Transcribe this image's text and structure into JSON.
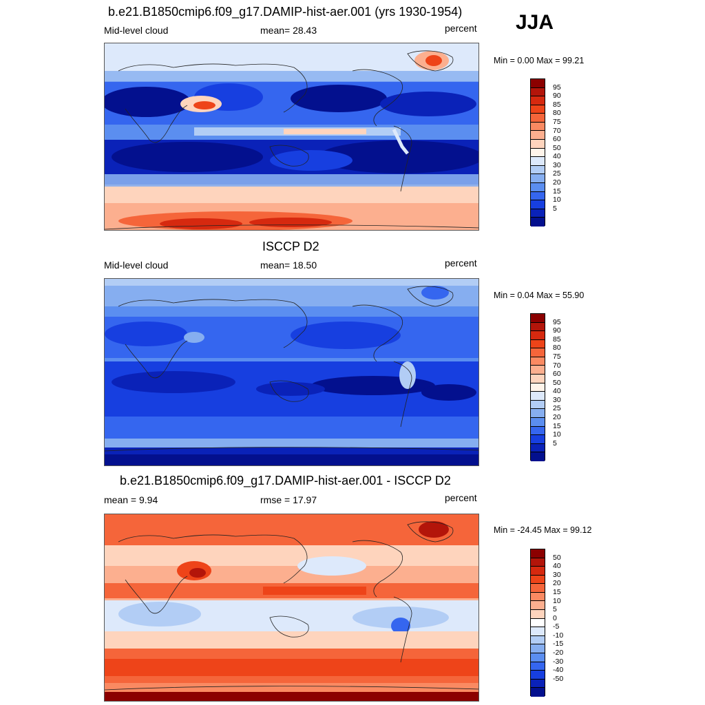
{
  "season": "JJA",
  "panels": [
    {
      "title": "b.e21.B1850cmip6.f09_g17.DAMIP-hist-aer.001 (yrs 1930-1954)",
      "left_label": "Mid-level cloud",
      "center_label": "mean=  28.43",
      "units": "percent",
      "minmax": "Min =   0.00 Max =  99.21",
      "colorbar": {
        "colors": [
          "#8b0000",
          "#b3150a",
          "#d6290f",
          "#ee4419",
          "#f5653a",
          "#fa8a62",
          "#fcaf8f",
          "#fed4bd",
          "#fff4ea",
          "#dde9fb",
          "#b2cdf5",
          "#86aef0",
          "#5b8ef0",
          "#3566ef",
          "#173fe0",
          "#0a22b8",
          "#03108e"
        ],
        "labels": [
          "95",
          "90",
          "85",
          "80",
          "75",
          "70",
          "60",
          "50",
          "40",
          "30",
          "25",
          "20",
          "15",
          "10",
          "5"
        ]
      }
    },
    {
      "title": "ISCCP D2",
      "left_label": "Mid-level cloud",
      "center_label": "mean=  18.50",
      "units": "percent",
      "minmax": "Min =   0.04 Max =  55.90",
      "colorbar": {
        "colors": [
          "#8b0000",
          "#b3150a",
          "#d6290f",
          "#ee4419",
          "#f5653a",
          "#fa8a62",
          "#fcaf8f",
          "#fed4bd",
          "#fff4ea",
          "#dde9fb",
          "#b2cdf5",
          "#86aef0",
          "#5b8ef0",
          "#3566ef",
          "#173fe0",
          "#0a22b8",
          "#03108e"
        ],
        "labels": [
          "95",
          "90",
          "85",
          "80",
          "75",
          "70",
          "60",
          "50",
          "40",
          "30",
          "25",
          "20",
          "15",
          "10",
          "5"
        ]
      }
    },
    {
      "title": "b.e21.B1850cmip6.f09_g17.DAMIP-hist-aer.001 - ISCCP D2",
      "left_label": "mean =   9.94",
      "center_label": "rmse =  17.97",
      "units": "percent",
      "minmax": "Min = -24.45 Max =  99.12",
      "colorbar": {
        "colors": [
          "#8b0000",
          "#b3150a",
          "#d6290f",
          "#ee4419",
          "#f5653a",
          "#fa8a62",
          "#fcaf8f",
          "#fed4bd",
          "#ffffff",
          "#dde9fb",
          "#b2cdf5",
          "#86aef0",
          "#5b8ef0",
          "#3566ef",
          "#173fe0",
          "#0a22b8",
          "#03108e"
        ],
        "labels": [
          "50",
          "40",
          "30",
          "20",
          "15",
          "10",
          "5",
          "0",
          "-5",
          "-10",
          "-15",
          "-20",
          "-30",
          "-40",
          "-50"
        ]
      }
    }
  ]
}
